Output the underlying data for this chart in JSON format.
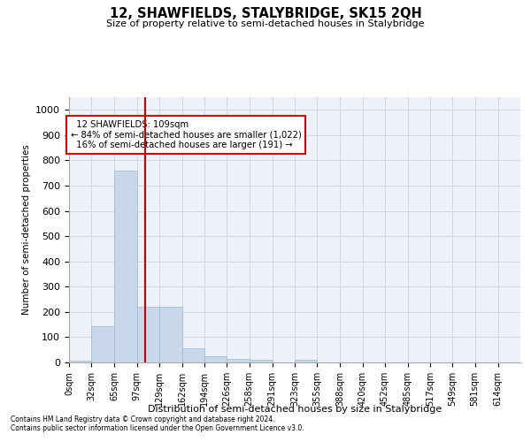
{
  "title": "12, SHAWFIELDS, STALYBRIDGE, SK15 2QH",
  "subtitle": "Size of property relative to semi-detached houses in Stalybridge",
  "xlabel": "Distribution of semi-detached houses by size in Stalybridge",
  "ylabel": "Number of semi-detached properties",
  "footnote1": "Contains HM Land Registry data © Crown copyright and database right 2024.",
  "footnote2": "Contains public sector information licensed under the Open Government Licence v3.0.",
  "annotation_line1": "12 SHAWFIELDS: 109sqm",
  "annotation_line2": "← 84% of semi-detached houses are smaller (1,022)",
  "annotation_line3": "16% of semi-detached houses are larger (191) →",
  "property_size": 109,
  "bar_edges": [
    0,
    32,
    65,
    97,
    129,
    162,
    194,
    226,
    258,
    291,
    323,
    355,
    388,
    420,
    452,
    485,
    517,
    549,
    581,
    614,
    646
  ],
  "bar_heights": [
    8,
    145,
    760,
    220,
    220,
    55,
    25,
    15,
    12,
    0,
    12,
    0,
    0,
    0,
    0,
    0,
    0,
    0,
    0,
    0
  ],
  "bar_color": "#c8d8ea",
  "bar_edgecolor": "#a0b8d0",
  "vline_color": "#cc0000",
  "vline_x": 109,
  "ylim": [
    0,
    1050
  ],
  "yticks": [
    0,
    100,
    200,
    300,
    400,
    500,
    600,
    700,
    800,
    900,
    1000
  ],
  "annotation_box_edgecolor": "#cc0000",
  "annotation_box_facecolor": "#ffffff",
  "grid_color": "#d0d8e8",
  "axes_background": "#eef2f8"
}
